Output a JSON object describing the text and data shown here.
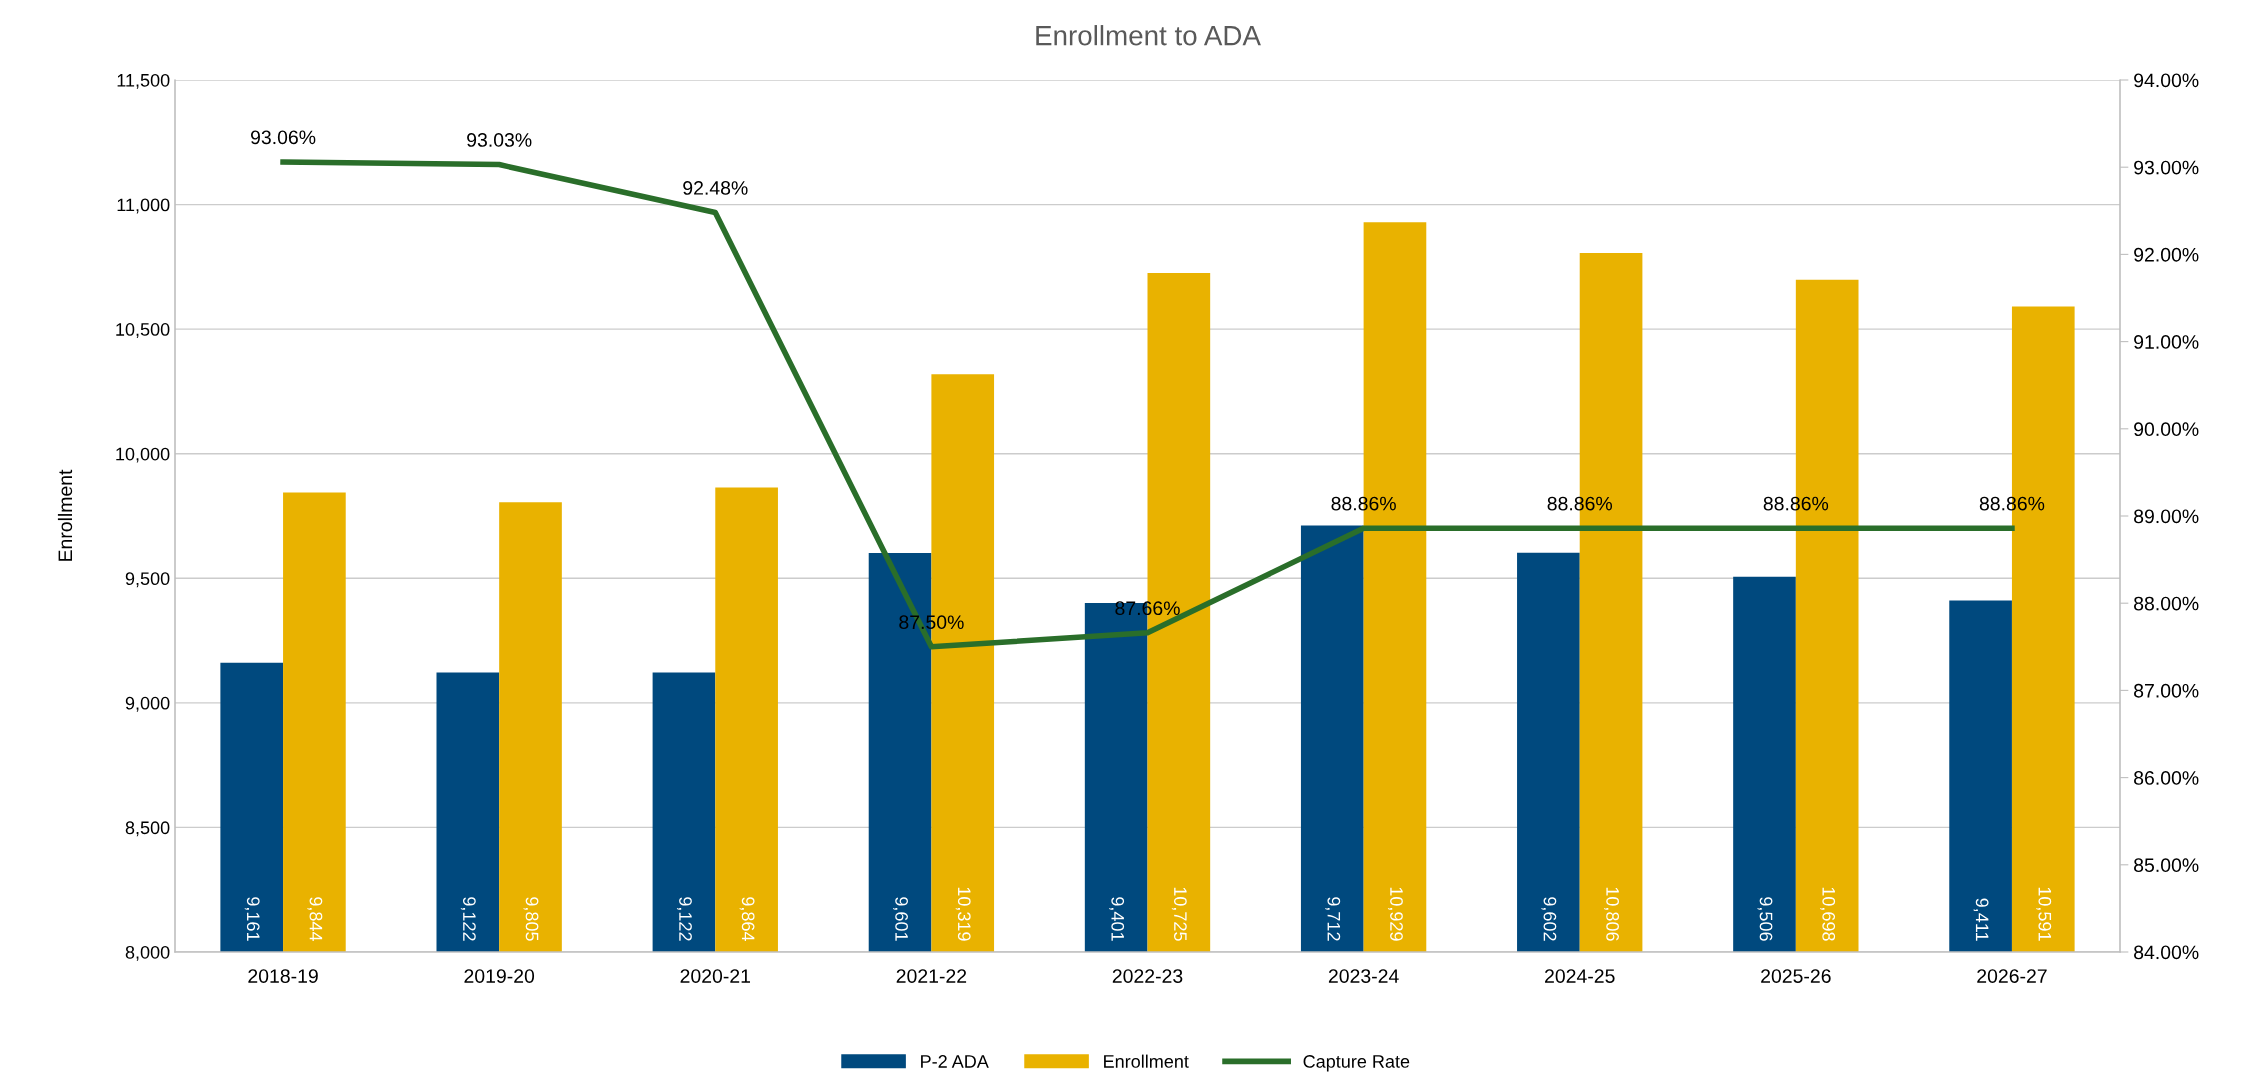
{
  "chart_data": {
    "type": "bar",
    "title": "Enrollment to ADA",
    "ylabel": "Enrollment",
    "categories": [
      "2018-19",
      "2019-20",
      "2020-21",
      "2021-22",
      "2022-23",
      "2023-24",
      "2024-25",
      "2025-26",
      "2026-27"
    ],
    "series": [
      {
        "name": "P-2 ADA",
        "color": "#00497e",
        "values": [
          9161,
          9122,
          9122,
          9601,
          9401,
          9712,
          9602,
          9506,
          9411
        ],
        "value_labels": [
          "9,161",
          "9,122",
          "9,122",
          "9,601",
          "9,401",
          "9,712",
          "9,602",
          "9,506",
          "9,411"
        ]
      },
      {
        "name": "Enrollment",
        "color": "#e9b200",
        "values": [
          9844,
          9805,
          9864,
          10319,
          10725,
          10929,
          10806,
          10698,
          10591
        ],
        "value_labels": [
          "9,844",
          "9,805",
          "9,864",
          "10,319",
          "10,725",
          "10,929",
          "10,806",
          "10,698",
          "10,591"
        ]
      },
      {
        "name": "Capture Rate",
        "type": "line",
        "axis": "y2",
        "color": "#2a6e2a",
        "values": [
          93.06,
          93.03,
          92.48,
          87.5,
          87.66,
          88.86,
          88.86,
          88.86,
          88.86
        ],
        "value_labels": [
          "93.06%",
          "93.03%",
          "92.48%",
          "87.50%",
          "87.66%",
          "88.86%",
          "88.86%",
          "88.86%",
          "88.86%"
        ]
      }
    ],
    "ylim": [
      8000,
      11500
    ],
    "yticks": [
      {
        "value": 8000,
        "label": "8,000"
      },
      {
        "value": 8500,
        "label": "8,500"
      },
      {
        "value": 9000,
        "label": "9,000"
      },
      {
        "value": 9500,
        "label": "9,500"
      },
      {
        "value": 10000,
        "label": "10,000"
      },
      {
        "value": 10500,
        "label": "10,500"
      },
      {
        "value": 11000,
        "label": "11,000"
      },
      {
        "value": 11500,
        "label": "11,500"
      }
    ],
    "y2lim": [
      84,
      94
    ],
    "y2ticks": [
      {
        "value": 84,
        "label": "84.00%"
      },
      {
        "value": 85,
        "label": "85.00%"
      },
      {
        "value": 86,
        "label": "86.00%"
      },
      {
        "value": 87,
        "label": "87.00%"
      },
      {
        "value": 88,
        "label": "88.00%"
      },
      {
        "value": 89,
        "label": "89.00%"
      },
      {
        "value": 90,
        "label": "90.00%"
      },
      {
        "value": 91,
        "label": "91.00%"
      },
      {
        "value": 92,
        "label": "92.00%"
      },
      {
        "value": 93,
        "label": "93.00%"
      },
      {
        "value": 94,
        "label": "94.00%"
      }
    ],
    "grid": "y",
    "legend": "bottom",
    "marker": "none",
    "line_style": "solid"
  }
}
